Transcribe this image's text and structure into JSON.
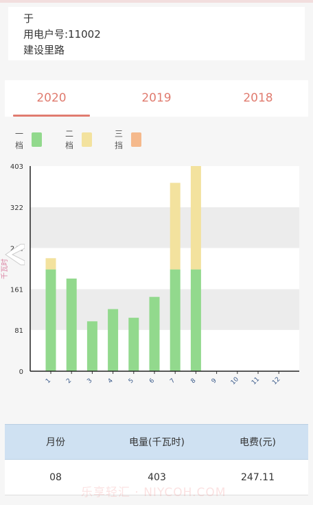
{
  "customer": {
    "name": "于",
    "account": "用电户号:11002",
    "address": "建设里路"
  },
  "tabs": [
    {
      "label": "2020",
      "active": true
    },
    {
      "label": "2019",
      "active": false
    },
    {
      "label": "2018",
      "active": false
    }
  ],
  "legend": [
    {
      "label": "一档",
      "color": "#92d98d"
    },
    {
      "label": "二档",
      "color": "#f3e29e"
    },
    {
      "label": "三挡",
      "color": "#f5b98c"
    }
  ],
  "chart_data": {
    "type": "bar",
    "stacked": true,
    "ylabel": "千瓦时",
    "ylim": [
      0,
      403
    ],
    "yticks": [
      0,
      81,
      161,
      242,
      322,
      403
    ],
    "categories": [
      "1",
      "2",
      "3",
      "4",
      "5",
      "6",
      "7",
      "8",
      "9",
      "10",
      "11",
      "12"
    ],
    "series": [
      {
        "name": "一档",
        "color": "#92d98d",
        "values": [
          200,
          182,
          98,
          122,
          105,
          146,
          200,
          200,
          0,
          0,
          0,
          0
        ]
      },
      {
        "name": "二档",
        "color": "#f3e29e",
        "values": [
          22,
          0,
          0,
          0,
          0,
          0,
          170,
          203,
          0,
          0,
          0,
          0
        ]
      },
      {
        "name": "三挡",
        "color": "#f5b98c",
        "values": [
          0,
          0,
          0,
          0,
          0,
          0,
          0,
          0,
          0,
          0,
          0,
          0
        ]
      }
    ],
    "grid_bands": true
  },
  "table": {
    "headers": [
      "月份",
      "电量(千瓦时)",
      "电费(元)"
    ],
    "rows": [
      [
        "08",
        "403",
        "247.11"
      ]
    ]
  },
  "watermark": "乐享轻汇 · NIYCOH.COM"
}
